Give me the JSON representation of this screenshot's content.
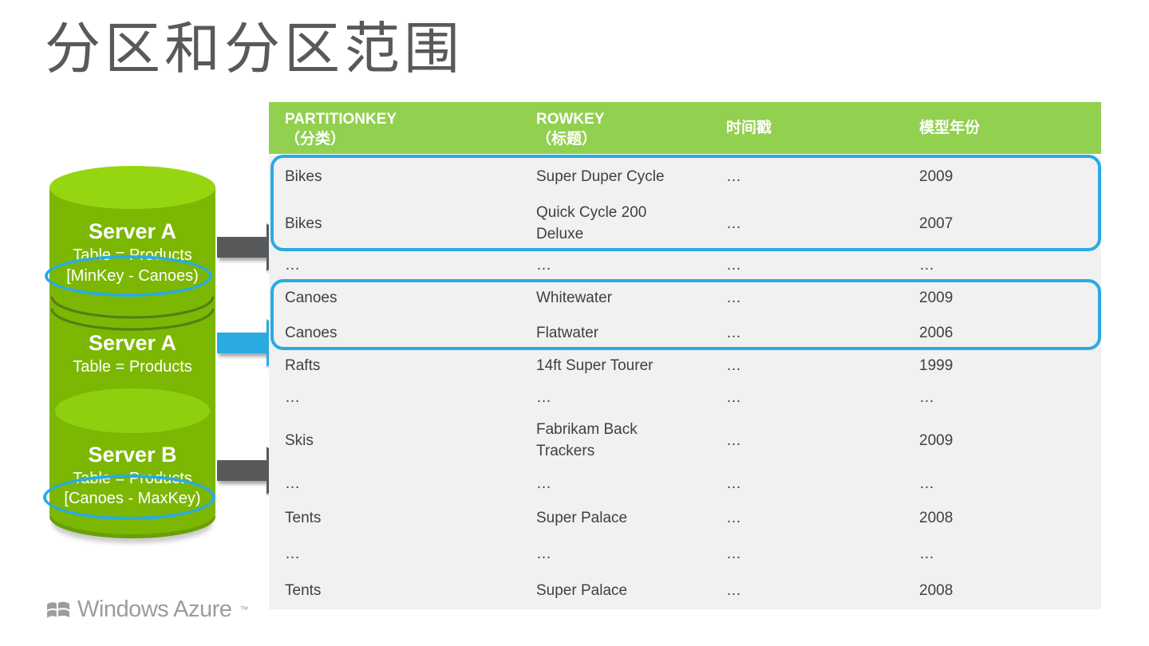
{
  "slide": {
    "title": "分区和分区范围",
    "background": "#ffffff"
  },
  "logo": {
    "text": "Windows Azure",
    "trademark": "™",
    "icon": "windows-flag-icon"
  },
  "servers": [
    {
      "name": "Server A",
      "table_label": "Table = Products",
      "key_range": "[MinKey - Canoes)",
      "range_highlighted": true,
      "arrow": "gray-arrow"
    },
    {
      "name": "Server A",
      "table_label": "Table = Products",
      "key_range": "",
      "range_highlighted": false,
      "arrow": "blue-arrow"
    },
    {
      "name": "Server B",
      "table_label": "Table = Products",
      "key_range": "[Canoes - MaxKey)",
      "range_highlighted": true,
      "arrow": "gray-arrow"
    }
  ],
  "table": {
    "headers": [
      {
        "line1": "PARTITIONKEY",
        "line2": "（分类）"
      },
      {
        "line1": "ROWKEY",
        "line2": "（标题）"
      },
      {
        "line1": "时间戳",
        "line2": ""
      },
      {
        "line1": "模型年份",
        "line2": ""
      }
    ],
    "rows": [
      {
        "partition_key": "Bikes",
        "row_key": "Super Duper Cycle",
        "timestamp": "…",
        "model_year": "2009"
      },
      {
        "partition_key": "Bikes",
        "row_key": "Quick Cycle 200 Deluxe",
        "timestamp": "…",
        "model_year": "2007"
      },
      {
        "partition_key": "…",
        "row_key": "…",
        "timestamp": "…",
        "model_year": "…"
      },
      {
        "partition_key": "Canoes",
        "row_key": "Whitewater",
        "timestamp": "…",
        "model_year": "2009"
      },
      {
        "partition_key": "Canoes",
        "row_key": "Flatwater",
        "timestamp": "…",
        "model_year": "2006"
      },
      {
        "partition_key": "Rafts",
        "row_key": "14ft Super Tourer",
        "timestamp": "…",
        "model_year": "1999"
      },
      {
        "partition_key": "…",
        "row_key": "…",
        "timestamp": "…",
        "model_year": "…"
      },
      {
        "partition_key": "Skis",
        "row_key": "Fabrikam Back Trackers",
        "timestamp": "…",
        "model_year": "2009"
      },
      {
        "partition_key": "…",
        "row_key": "…",
        "timestamp": "…",
        "model_year": "…"
      },
      {
        "partition_key": "Tents",
        "row_key": "Super Palace",
        "timestamp": "…",
        "model_year": "2008"
      },
      {
        "partition_key": "…",
        "row_key": "…",
        "timestamp": "…",
        "model_year": "…"
      },
      {
        "partition_key": "Tents",
        "row_key": "Super Palace",
        "timestamp": "…",
        "model_year": "2008"
      }
    ],
    "highlights": [
      {
        "label": "bikes-partition-range",
        "row_start": 0,
        "row_end": 1
      },
      {
        "label": "canoes-partition-range",
        "row_start": 3,
        "row_end": 4
      }
    ]
  },
  "colors": {
    "blue": "#29abe2",
    "green_header": "#92d050",
    "cyl_body": "#7cb703",
    "cyl_top": "#96d611",
    "cyl_top2": "#8fd00e",
    "cyl_rim": "#699f02",
    "cyl_line": "#547d18",
    "arrow_gray": "#58595b",
    "row_bg": "#f1f1f1",
    "row_text": "#404040",
    "title_color": "#595959",
    "logo_color": "#9c9c9c"
  }
}
